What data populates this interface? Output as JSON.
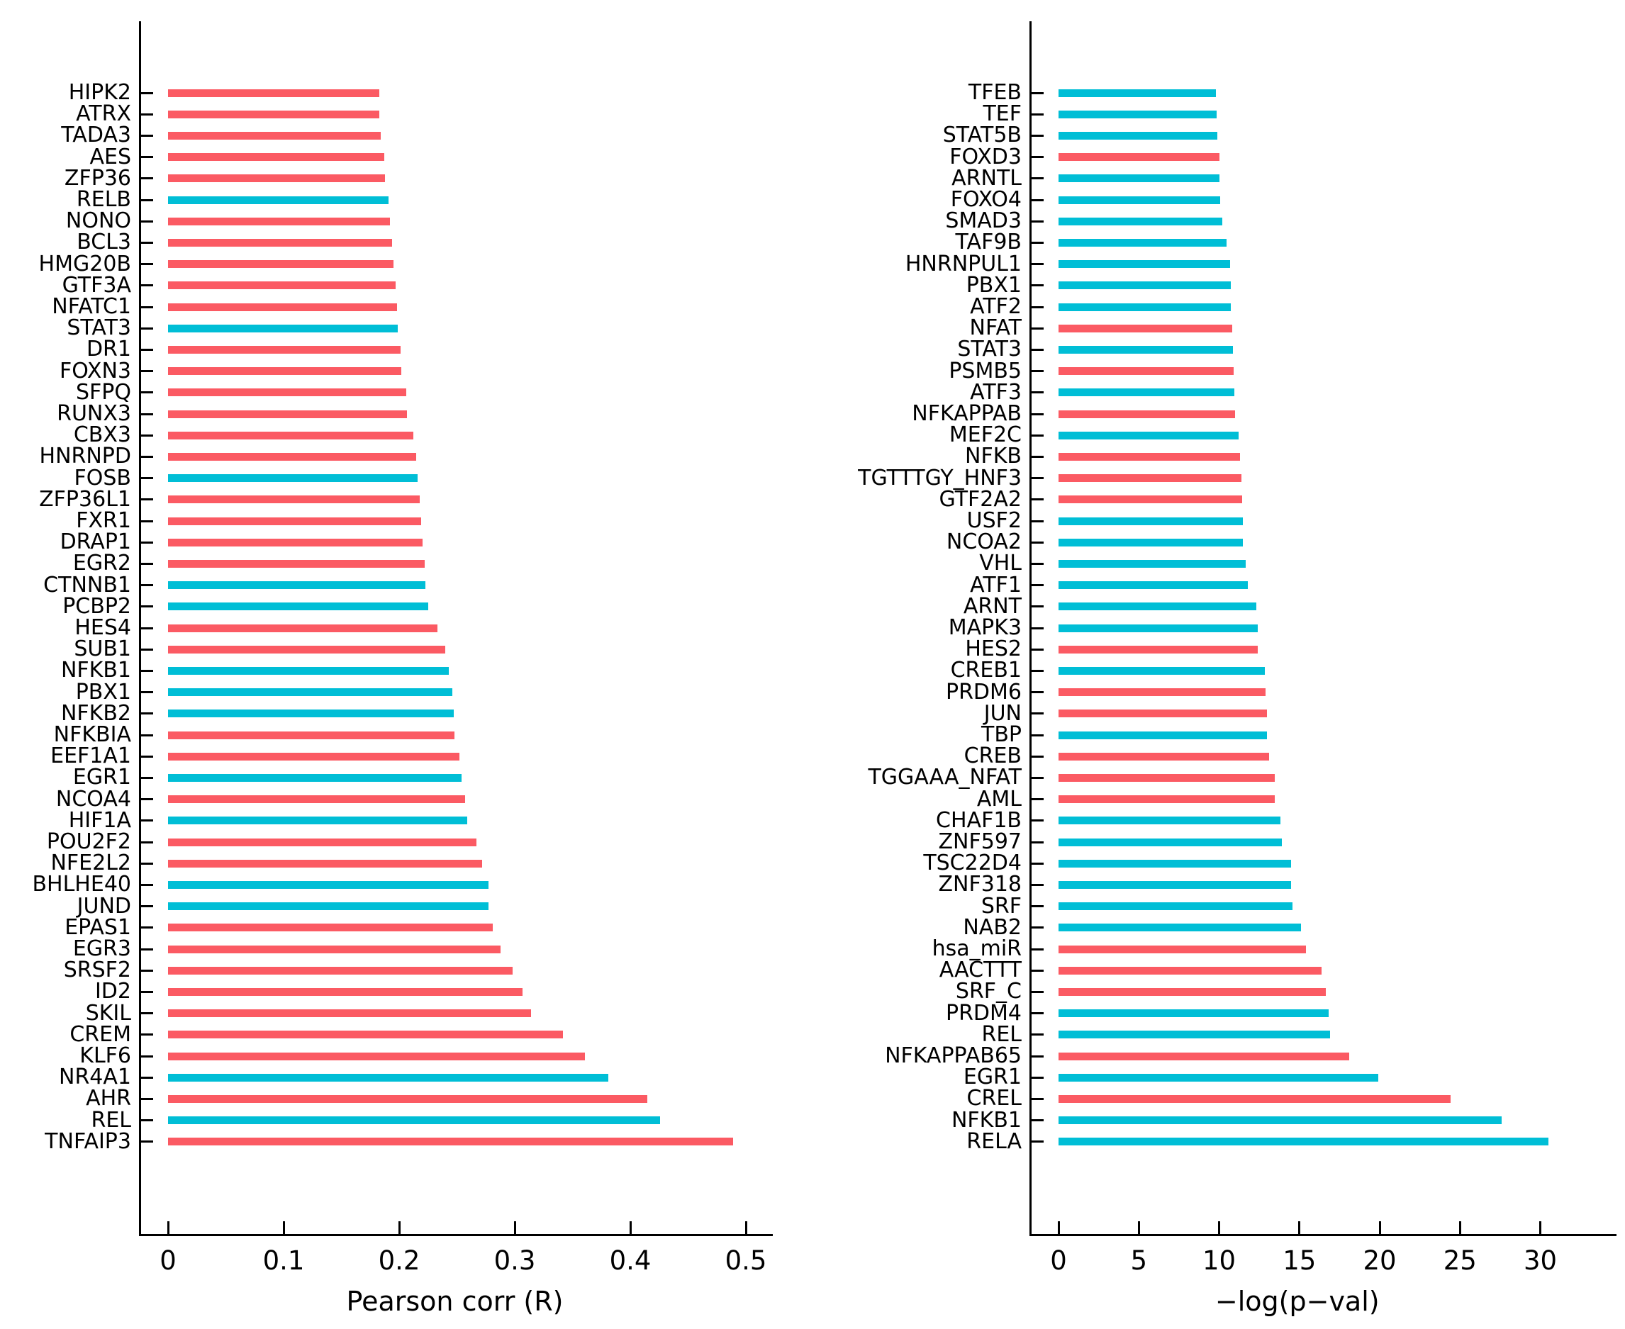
{
  "figure": {
    "background": "#ffffff",
    "axis_color": "#000000",
    "palette": {
      "red": "#FB5A63",
      "cyan": "#00BED6"
    }
  },
  "chart_data": [
    {
      "type": "bar",
      "orientation": "horizontal",
      "title": "",
      "xlabel": "Pearson corr (R)",
      "ylabel": "",
      "xlim": [
        0,
        0.52
      ],
      "xticks": [
        0,
        0.1,
        0.2,
        0.3,
        0.4,
        0.5
      ],
      "xtick_labels": [
        "0",
        "0.1",
        "0.2",
        "0.3",
        "0.4",
        "0.5"
      ],
      "grid": false,
      "legend": "none",
      "categories": [
        "HIPK2",
        "ATRX",
        "TADA3",
        "AES",
        "ZFP36",
        "RELB",
        "NONO",
        "BCL3",
        "HMG20B",
        "GTF3A",
        "NFATC1",
        "STAT3",
        "DR1",
        "FOXN3",
        "SFPQ",
        "RUNX3",
        "CBX3",
        "HNRNPD",
        "FOSB",
        "ZFP36L1",
        "FXR1",
        "DRAP1",
        "EGR2",
        "CTNNB1",
        "PCBP2",
        "HES4",
        "SUB1",
        "NFKB1",
        "PBX1",
        "NFKB2",
        "NFKBIA",
        "EEF1A1",
        "EGR1",
        "NCOA4",
        "HIF1A",
        "POU2F2",
        "NFE2L2",
        "BHLHE40",
        "JUND",
        "EPAS1",
        "EGR3",
        "SRSF2",
        "ID2",
        "SKIL",
        "CREM",
        "KLF6",
        "NR4A1",
        "AHR",
        "REL",
        "TNFAIP3"
      ],
      "values": [
        0.183,
        0.183,
        0.184,
        0.187,
        0.188,
        0.191,
        0.192,
        0.194,
        0.195,
        0.197,
        0.198,
        0.199,
        0.201,
        0.202,
        0.206,
        0.207,
        0.212,
        0.215,
        0.216,
        0.218,
        0.219,
        0.22,
        0.222,
        0.223,
        0.225,
        0.233,
        0.24,
        0.243,
        0.246,
        0.247,
        0.248,
        0.252,
        0.254,
        0.257,
        0.259,
        0.267,
        0.272,
        0.277,
        0.277,
        0.281,
        0.288,
        0.298,
        0.307,
        0.314,
        0.342,
        0.361,
        0.381,
        0.415,
        0.426,
        0.489
      ],
      "colors": [
        "red",
        "red",
        "red",
        "red",
        "red",
        "cyan",
        "red",
        "red",
        "red",
        "red",
        "red",
        "cyan",
        "red",
        "red",
        "red",
        "red",
        "red",
        "red",
        "cyan",
        "red",
        "red",
        "red",
        "red",
        "cyan",
        "cyan",
        "red",
        "red",
        "cyan",
        "cyan",
        "cyan",
        "red",
        "red",
        "cyan",
        "red",
        "cyan",
        "red",
        "red",
        "cyan",
        "cyan",
        "red",
        "red",
        "red",
        "red",
        "red",
        "red",
        "red",
        "cyan",
        "red",
        "cyan",
        "red"
      ]
    },
    {
      "type": "bar",
      "orientation": "horizontal",
      "title": "",
      "xlabel": "−log(p−val)",
      "ylabel": "",
      "xlim": [
        0,
        32
      ],
      "xticks": [
        0,
        5,
        10,
        15,
        20,
        25,
        30
      ],
      "xtick_labels": [
        "0",
        "5",
        "10",
        "15",
        "20",
        "25",
        "30"
      ],
      "grid": false,
      "legend": "none",
      "categories": [
        "TFEB",
        "TEF",
        "STAT5B",
        "FOXD3",
        "ARNTL",
        "FOXO4",
        "SMAD3",
        "TAF9B",
        "HNRNPUL1",
        "PBX1",
        "ATF2",
        "NFAT",
        "STAT3",
        "PSMB5",
        "ATF3",
        "NFKAPPAB",
        "MEF2C",
        "NFKB",
        "TGTTTGY_HNF3",
        "GTF2A2",
        "USF2",
        "NCOA2",
        "VHL",
        "ATF1",
        "ARNT",
        "MAPK3",
        "HES2",
        "CREB1",
        "PRDM6",
        "JUN",
        "TBP",
        "CREB",
        "TGGAAA_NFAT",
        "AML",
        "CHAF1B",
        "ZNF597",
        "TSC22D4",
        "ZNF318",
        "SRF",
        "NAB2",
        "hsa_miR",
        "AACTTT",
        "SRF_C",
        "PRDM4",
        "REL",
        "NFKAPPAB65",
        "EGR1",
        "CREL",
        "NFKB1",
        "RELA"
      ],
      "values": [
        9.8,
        9.85,
        9.9,
        10.0,
        10.0,
        10.05,
        10.2,
        10.45,
        10.7,
        10.75,
        10.75,
        10.8,
        10.85,
        10.9,
        10.95,
        11.0,
        11.2,
        11.3,
        11.4,
        11.45,
        11.5,
        11.5,
        11.65,
        11.8,
        12.3,
        12.4,
        12.4,
        12.85,
        12.9,
        13.0,
        13.0,
        13.1,
        13.45,
        13.45,
        13.8,
        13.9,
        14.5,
        14.5,
        14.55,
        15.1,
        15.4,
        16.4,
        16.65,
        16.8,
        16.9,
        18.1,
        19.9,
        24.4,
        27.6,
        30.5
      ],
      "colors": [
        "cyan",
        "cyan",
        "cyan",
        "red",
        "cyan",
        "cyan",
        "cyan",
        "cyan",
        "cyan",
        "cyan",
        "cyan",
        "red",
        "cyan",
        "red",
        "cyan",
        "red",
        "cyan",
        "red",
        "red",
        "red",
        "cyan",
        "cyan",
        "cyan",
        "cyan",
        "cyan",
        "cyan",
        "red",
        "cyan",
        "red",
        "red",
        "cyan",
        "red",
        "red",
        "red",
        "cyan",
        "cyan",
        "cyan",
        "cyan",
        "cyan",
        "cyan",
        "red",
        "red",
        "red",
        "cyan",
        "cyan",
        "red",
        "cyan",
        "red",
        "cyan",
        "cyan"
      ]
    }
  ]
}
